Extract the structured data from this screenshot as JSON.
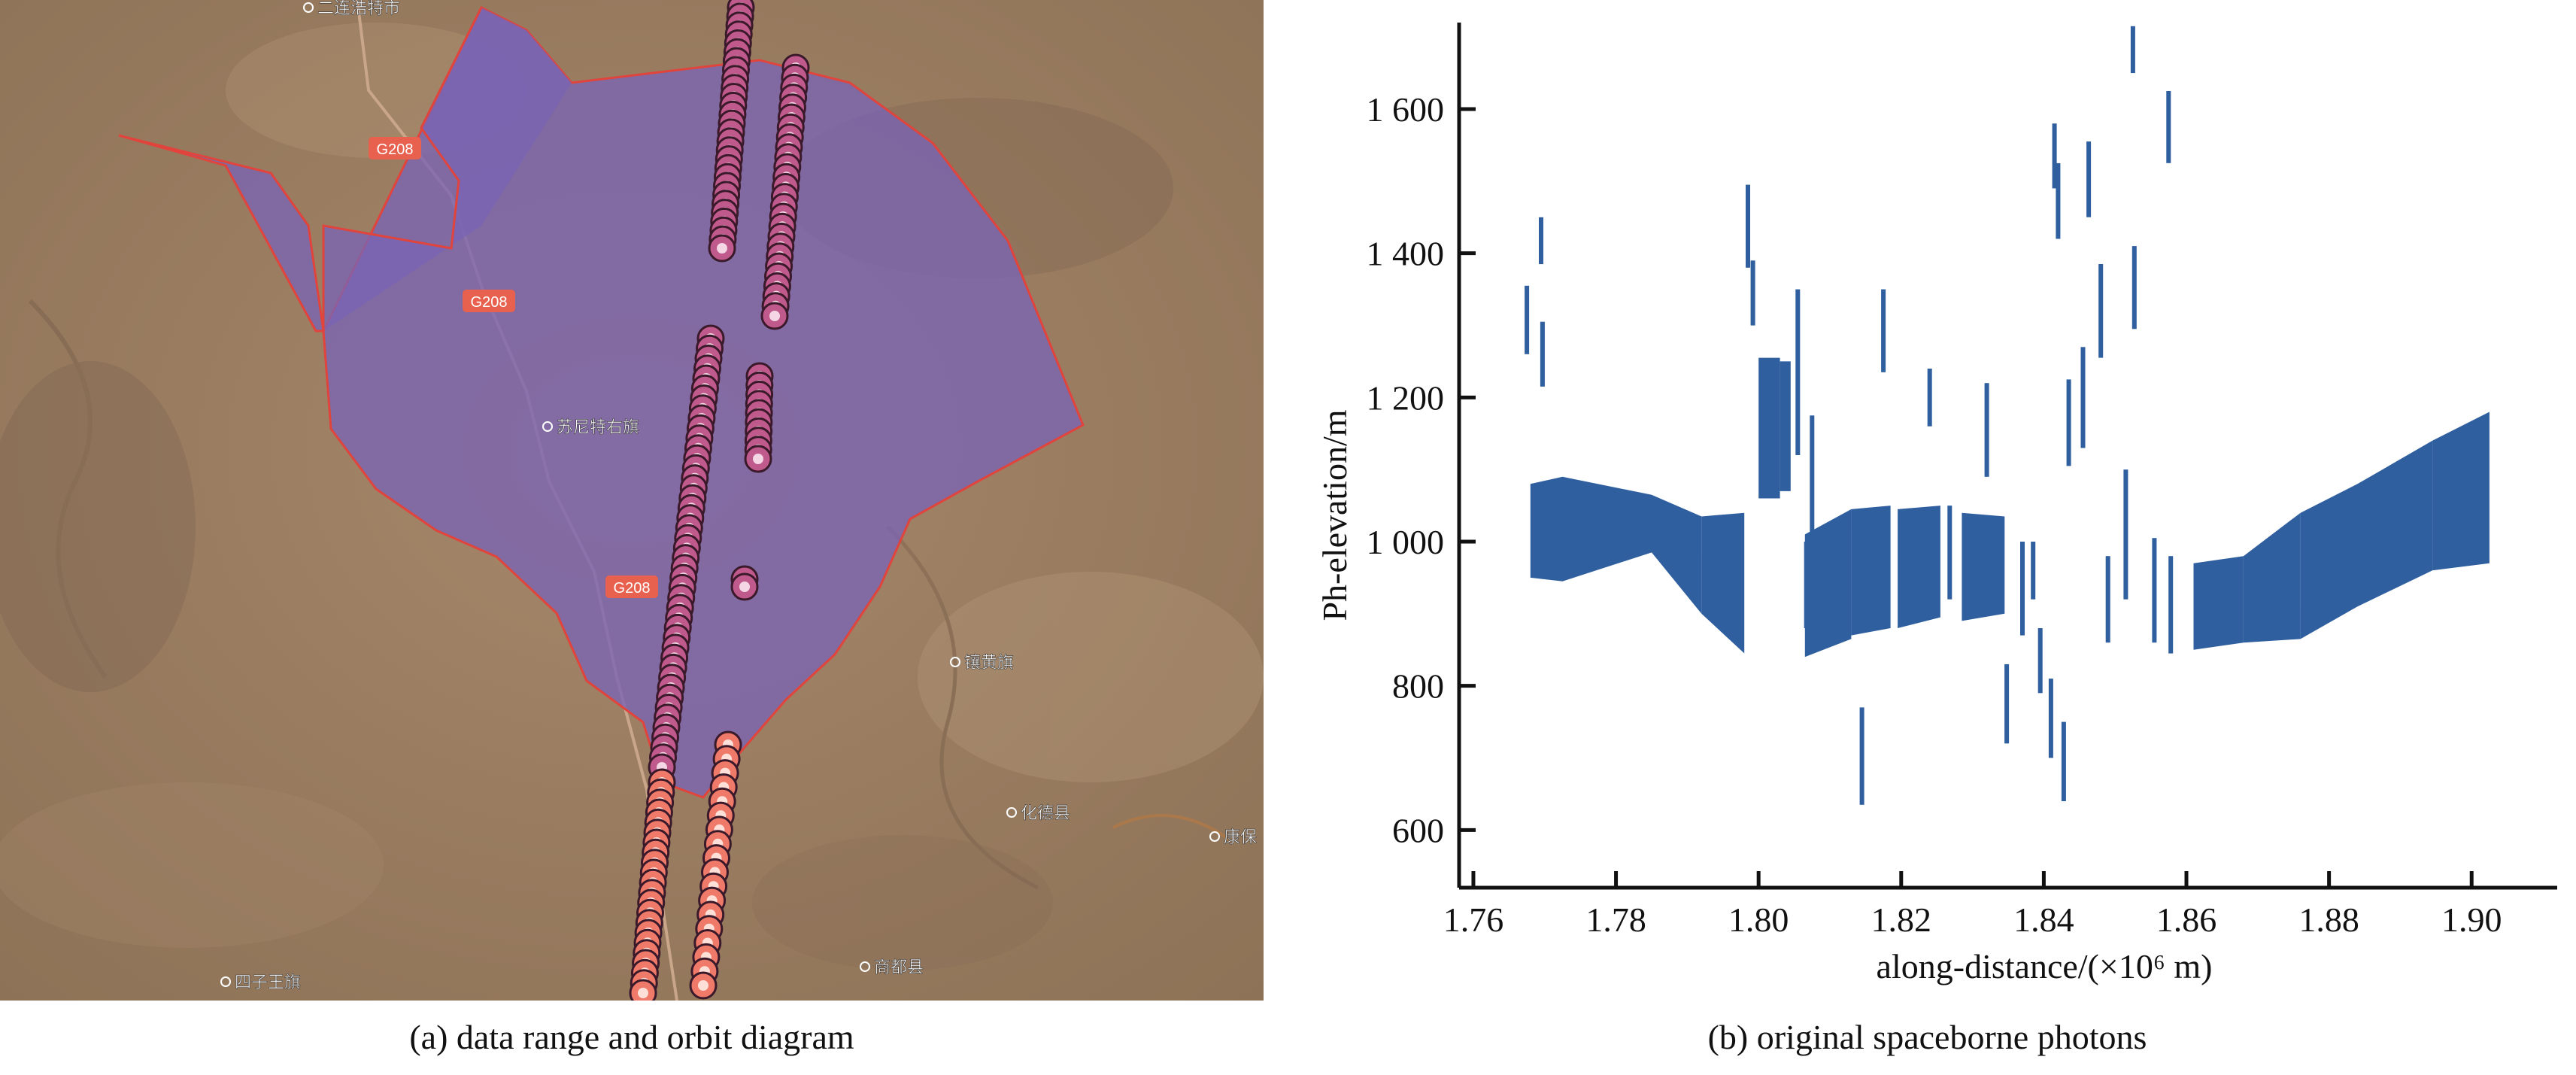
{
  "captions": {
    "a": "(a) data range and orbit diagram",
    "b": "(b) original spaceborne photons"
  },
  "map": {
    "road_labels": [
      "G208",
      "G208",
      "G208"
    ],
    "place_labels": [
      "二连浩特市",
      "苏尼特右旗",
      "镶黄旗",
      "化德县",
      "康保",
      "商都县",
      "四子王旗"
    ],
    "colors": {
      "terrain": "#9c7f62",
      "region_fill": "#7a64b4",
      "region_border": "#e0443c",
      "track_marker_a": "#c05a8c",
      "track_marker_b": "#f07a6a",
      "road_label_bg": "#e8604e"
    }
  },
  "chart_data": {
    "type": "scatter",
    "xlabel": "along-distance/(×10⁶ m)",
    "ylabel": "Ph-elevation/m",
    "xlim": [
      1.758,
      1.912
    ],
    "ylim": [
      520,
      1720
    ],
    "x_ticks": [
      1.76,
      1.78,
      1.8,
      1.82,
      1.84,
      1.86,
      1.88,
      1.9
    ],
    "x_tick_labels": [
      "1.76",
      "1.78",
      "1.80",
      "1.82",
      "1.84",
      "1.86",
      "1.88",
      "1.90"
    ],
    "y_ticks": [
      600,
      800,
      1000,
      1200,
      1400,
      1600
    ],
    "y_tick_labels": [
      "600",
      "800",
      "1 000",
      "1 200",
      "1 400",
      "1 600"
    ],
    "color": "#2f5f9e",
    "bands": [
      {
        "x": [
          1.768,
          1.7725
        ],
        "lo": [
          950,
          945
        ],
        "hi": [
          1080,
          1090
        ]
      },
      {
        "x": [
          1.7725,
          1.785
        ],
        "lo": [
          945,
          985
        ],
        "hi": [
          1090,
          1065
        ]
      },
      {
        "x": [
          1.785,
          1.792
        ],
        "lo": [
          985,
          900
        ],
        "hi": [
          1065,
          1035
        ]
      },
      {
        "x": [
          1.792,
          1.798
        ],
        "lo": [
          900,
          845
        ],
        "hi": [
          1035,
          1040
        ]
      },
      {
        "x": [
          1.8,
          1.803
        ],
        "lo": [
          1060,
          1060
        ],
        "hi": [
          1255,
          1255
        ]
      },
      {
        "x": [
          1.803,
          1.8045
        ],
        "lo": [
          1070,
          1070
        ],
        "hi": [
          1250,
          1250
        ]
      },
      {
        "x": [
          1.8065,
          1.813
        ],
        "lo": [
          840,
          865
        ],
        "hi": [
          1010,
          1045
        ]
      },
      {
        "x": [
          1.813,
          1.8185
        ],
        "lo": [
          870,
          880
        ],
        "hi": [
          1045,
          1050
        ]
      },
      {
        "x": [
          1.8195,
          1.8255
        ],
        "lo": [
          880,
          895
        ],
        "hi": [
          1045,
          1050
        ]
      },
      {
        "x": [
          1.8285,
          1.8345
        ],
        "lo": [
          890,
          900
        ],
        "hi": [
          1040,
          1035
        ]
      },
      {
        "x": [
          1.861,
          1.868
        ],
        "lo": [
          850,
          860
        ],
        "hi": [
          970,
          980
        ]
      },
      {
        "x": [
          1.868,
          1.876
        ],
        "lo": [
          860,
          865
        ],
        "hi": [
          980,
          1040
        ]
      },
      {
        "x": [
          1.876,
          1.884
        ],
        "lo": [
          865,
          910
        ],
        "hi": [
          1040,
          1080
        ]
      },
      {
        "x": [
          1.884,
          1.8945
        ],
        "lo": [
          910,
          960
        ],
        "hi": [
          1080,
          1140
        ]
      },
      {
        "x": [
          1.8945,
          1.9025
        ],
        "lo": [
          960,
          970
        ],
        "hi": [
          1140,
          1180
        ]
      }
    ],
    "segments": [
      {
        "x": 1.7675,
        "lo": 1260,
        "hi": 1355
      },
      {
        "x": 1.7695,
        "lo": 1385,
        "hi": 1450
      },
      {
        "x": 1.7697,
        "lo": 1215,
        "hi": 1305
      },
      {
        "x": 1.7985,
        "lo": 1380,
        "hi": 1495
      },
      {
        "x": 1.7992,
        "lo": 1300,
        "hi": 1390
      },
      {
        "x": 1.8055,
        "lo": 1120,
        "hi": 1350
      },
      {
        "x": 1.8067,
        "lo": 880,
        "hi": 1000
      },
      {
        "x": 1.8075,
        "lo": 960,
        "hi": 1175
      },
      {
        "x": 1.8145,
        "lo": 635,
        "hi": 770
      },
      {
        "x": 1.8175,
        "lo": 1235,
        "hi": 1350
      },
      {
        "x": 1.824,
        "lo": 1160,
        "hi": 1240
      },
      {
        "x": 1.8268,
        "lo": 920,
        "hi": 1050
      },
      {
        "x": 1.832,
        "lo": 1090,
        "hi": 1220
      },
      {
        "x": 1.8348,
        "lo": 720,
        "hi": 830
      },
      {
        "x": 1.837,
        "lo": 870,
        "hi": 1000
      },
      {
        "x": 1.8385,
        "lo": 920,
        "hi": 1000
      },
      {
        "x": 1.8395,
        "lo": 790,
        "hi": 880
      },
      {
        "x": 1.841,
        "lo": 700,
        "hi": 810
      },
      {
        "x": 1.8415,
        "lo": 1490,
        "hi": 1580
      },
      {
        "x": 1.842,
        "lo": 1420,
        "hi": 1525
      },
      {
        "x": 1.8428,
        "lo": 640,
        "hi": 750
      },
      {
        "x": 1.8435,
        "lo": 1105,
        "hi": 1225
      },
      {
        "x": 1.8455,
        "lo": 1130,
        "hi": 1270
      },
      {
        "x": 1.8463,
        "lo": 1450,
        "hi": 1555
      },
      {
        "x": 1.848,
        "lo": 1255,
        "hi": 1385
      },
      {
        "x": 1.849,
        "lo": 860,
        "hi": 980
      },
      {
        "x": 1.8515,
        "lo": 920,
        "hi": 1100
      },
      {
        "x": 1.8525,
        "lo": 1650,
        "hi": 1715
      },
      {
        "x": 1.8527,
        "lo": 1295,
        "hi": 1410
      },
      {
        "x": 1.8555,
        "lo": 860,
        "hi": 1005
      },
      {
        "x": 1.8575,
        "lo": 1525,
        "hi": 1625
      },
      {
        "x": 1.8578,
        "lo": 845,
        "hi": 980
      }
    ]
  }
}
